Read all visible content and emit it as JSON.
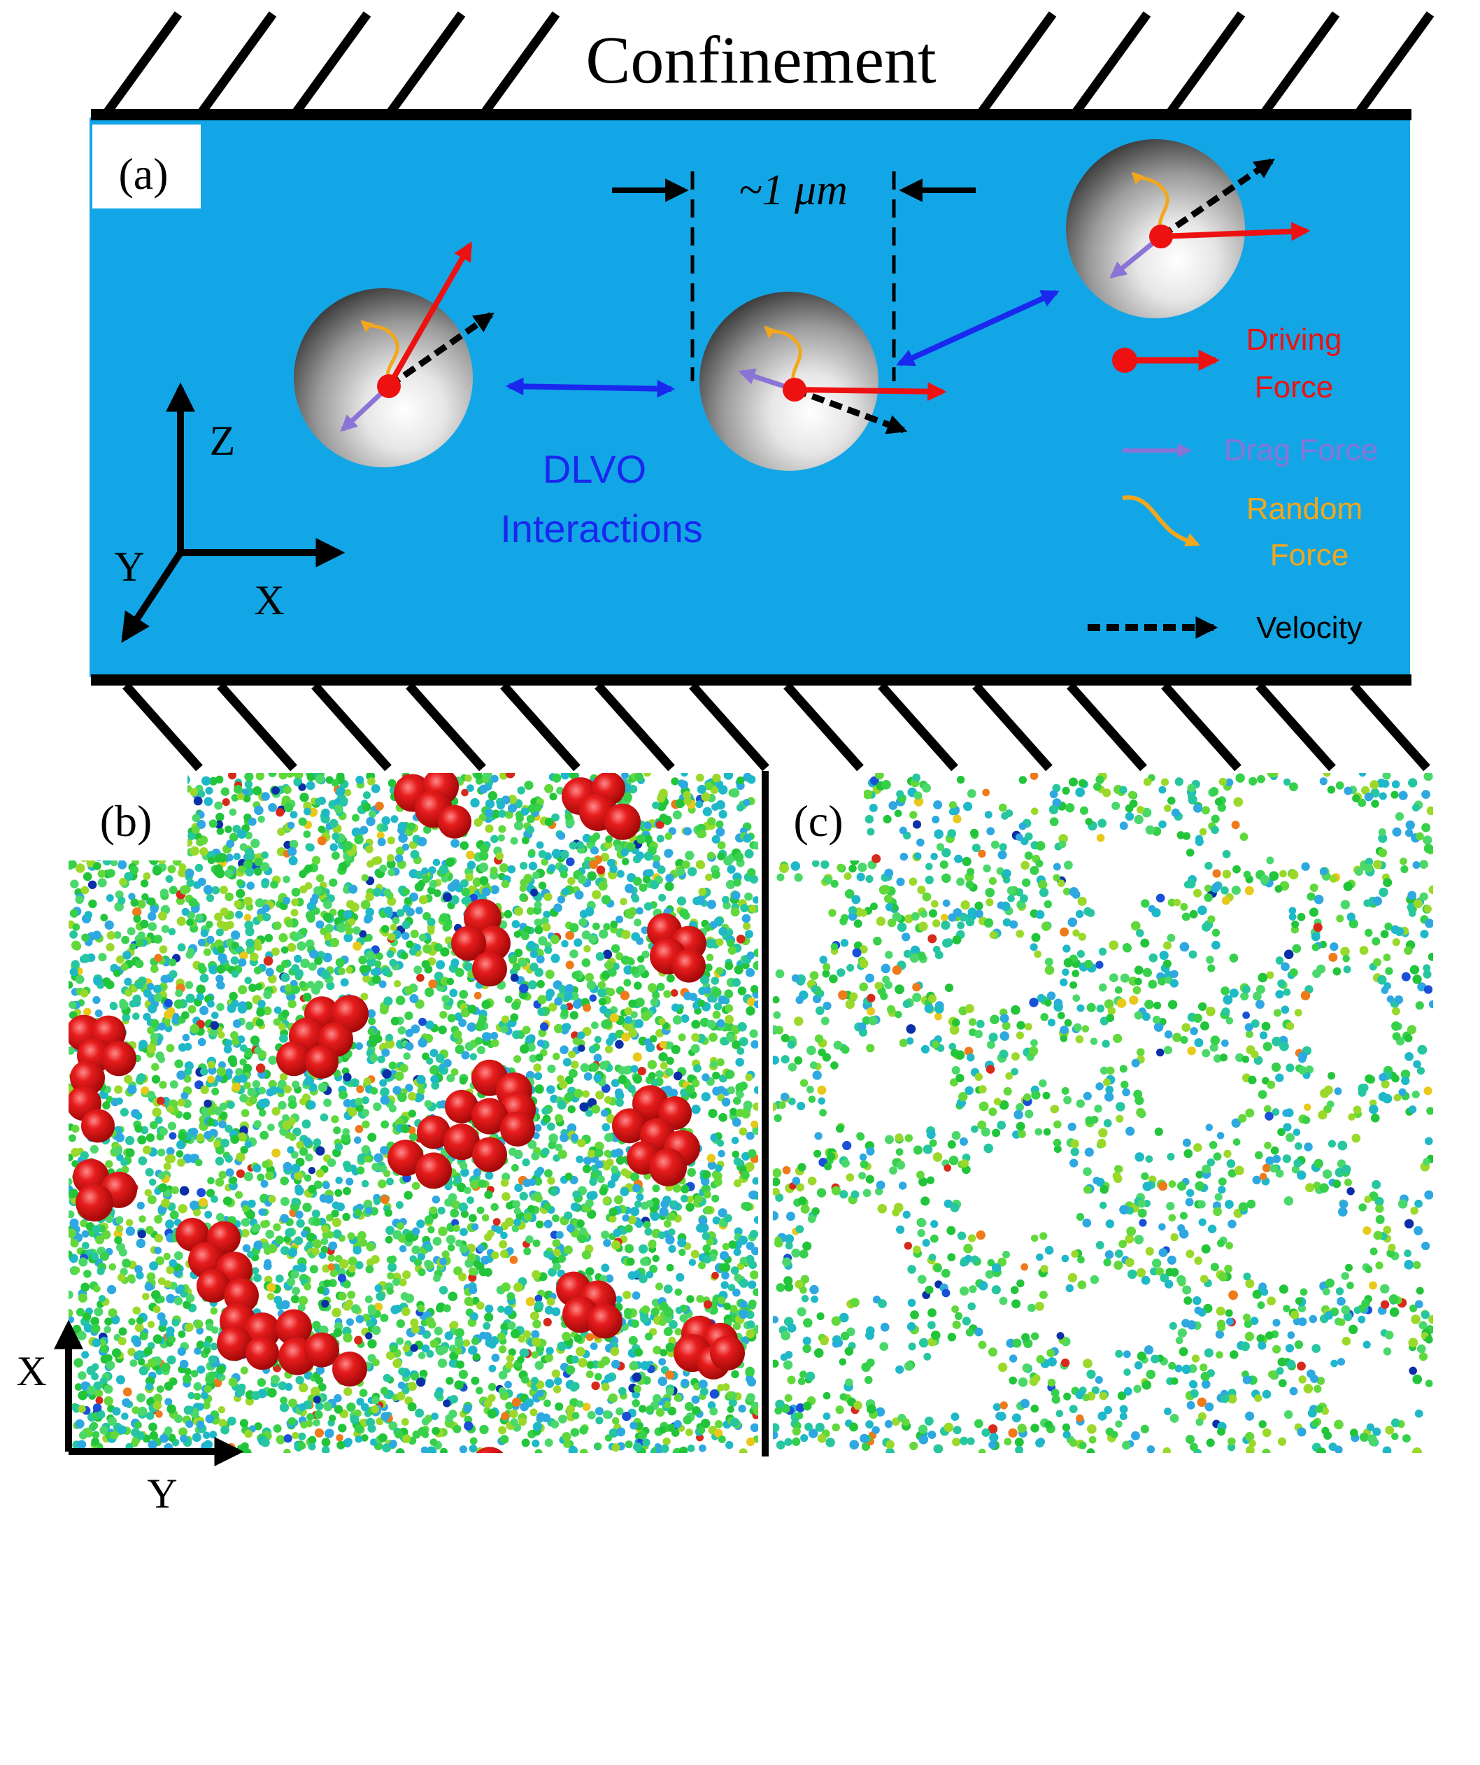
{
  "confinement_label": "Confinement",
  "panel_a": {
    "label": "(a)",
    "size_label": "~1 μm",
    "dlvo_line1": "DLVO",
    "dlvo_line2": "Interactions",
    "axes": {
      "z": "Z",
      "y": "Y",
      "x": "X"
    },
    "legend": {
      "driving_line1": "Driving",
      "driving_line2": "Force",
      "drag": "Drag Force",
      "random_line1": "Random",
      "random_line2": "Force",
      "velocity": "Velocity"
    }
  },
  "panel_b": {
    "label": "(b)",
    "axes": {
      "x": "X",
      "y": "Y"
    }
  },
  "panel_c": {
    "label": "(c)"
  },
  "colors": {
    "fluid": "#13a6e6",
    "driving_force": "#ee1111",
    "drag_force": "#8a74d6",
    "random_force": "#f2a71c",
    "dlvo": "#1a28ee",
    "velocity": "#000000",
    "big_particle": "#d01010"
  },
  "icons": [
    "sphere-particle-icon",
    "hatch-wall-icon",
    "axis-triad-icon"
  ]
}
